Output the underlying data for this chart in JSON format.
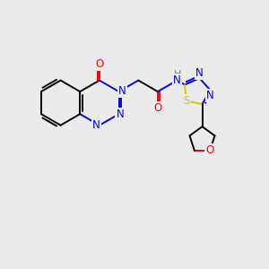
{
  "bg_color": "#ebebeb",
  "atom_colors": {
    "C": "#000000",
    "N": "#0000ff",
    "O": "#ff0000",
    "S": "#cccc00",
    "H_label": "#4a9090"
  },
  "figsize": [
    3.0,
    3.0
  ],
  "dpi": 100,
  "bond_lw": 1.4,
  "font_size": 8.5
}
